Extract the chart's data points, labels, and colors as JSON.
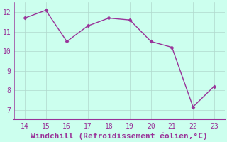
{
  "x": [
    14,
    15,
    16,
    17,
    18,
    19,
    20,
    21,
    22,
    23
  ],
  "y": [
    11.7,
    12.1,
    10.5,
    11.3,
    11.7,
    11.6,
    10.5,
    10.2,
    7.15,
    8.2
  ],
  "line_color": "#993399",
  "marker_color": "#993399",
  "bg_color": "#ccffee",
  "grid_color": "#b0d8cc",
  "xlabel": "Windchill (Refroidissement éolien,°C)",
  "xlabel_color": "#993399",
  "xlim": [
    13.5,
    23.5
  ],
  "ylim": [
    6.5,
    12.5
  ],
  "yticks": [
    7,
    8,
    9,
    10,
    11,
    12
  ],
  "xticks": [
    14,
    15,
    16,
    17,
    18,
    19,
    20,
    21,
    22,
    23
  ],
  "tick_color": "#993399",
  "tick_fontsize": 7,
  "xlabel_fontsize": 8,
  "line_width": 1.0,
  "marker_size": 2.5,
  "spine_color": "#993399",
  "spine_linewidth": 1.5
}
